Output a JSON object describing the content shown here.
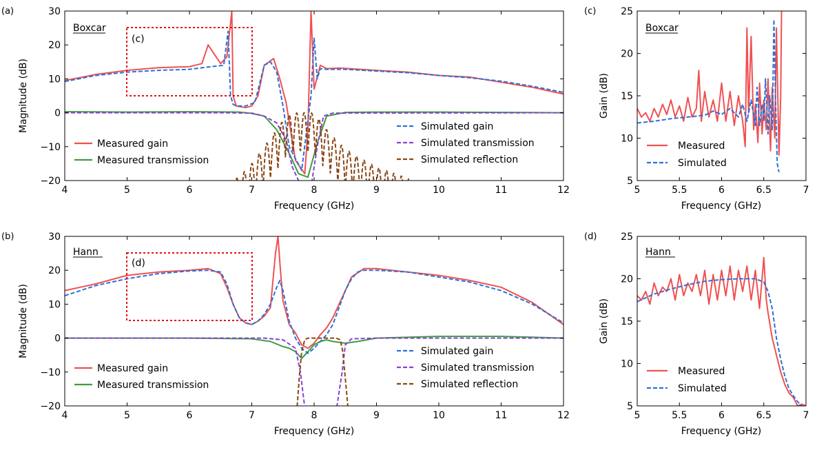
{
  "colors": {
    "measured_gain": "#f05050",
    "measured_transmission": "#3c9e3c",
    "simulated_gain": "#2a70d8",
    "simulated_transmission": "#8b3fd6",
    "simulated_reflection": "#8b4513",
    "dashed_box": "#e01010"
  },
  "panels": [
    {
      "id": "a",
      "panel_label": "(a)",
      "window_label": "Boxcar",
      "xlabel": "Frequency (GHz)",
      "ylabel": "Magnitude (dB)",
      "xlim": [
        4,
        12
      ],
      "ylim": [
        -20,
        30
      ],
      "xticks": [
        4,
        5,
        6,
        7,
        8,
        9,
        10,
        11,
        12
      ],
      "yticks": [
        -20,
        -10,
        0,
        10,
        20,
        30
      ],
      "inset_box_label": "(c)",
      "inset_box_range": {
        "x": [
          5,
          7
        ],
        "y": [
          5,
          25
        ]
      },
      "legend_left": [
        "Measured gain",
        "Measured transmission"
      ],
      "legend_right": [
        "Simulated gain",
        "Simulated transmission",
        "Simulated reflection"
      ]
    },
    {
      "id": "b",
      "panel_label": "(b)",
      "window_label": "Hann",
      "xlabel": "Frequency (GHz)",
      "ylabel": "Magnitude (dB)",
      "xlim": [
        4,
        12
      ],
      "ylim": [
        -20,
        30
      ],
      "xticks": [
        4,
        5,
        6,
        7,
        8,
        9,
        10,
        11,
        12
      ],
      "yticks": [
        -20,
        -10,
        0,
        10,
        20,
        30
      ],
      "inset_box_label": "(d)",
      "inset_box_range": {
        "x": [
          5,
          7
        ],
        "y": [
          5,
          25
        ]
      },
      "legend_left": [
        "Measured gain",
        "Measured transmission"
      ],
      "legend_right": [
        "Simulated gain",
        "Simulated transmission",
        "Simulated reflection"
      ]
    },
    {
      "id": "c",
      "panel_label": "(c)",
      "window_label": "Boxcar",
      "xlabel": "Frequency (GHz)",
      "ylabel": "Gain (dB)",
      "xlim": [
        5,
        7
      ],
      "ylim": [
        5,
        25
      ],
      "xticks": [
        5,
        5.5,
        6,
        6.5,
        7
      ],
      "yticks": [
        5,
        10,
        15,
        20,
        25
      ],
      "legend": [
        "Measured",
        "Simulated"
      ]
    },
    {
      "id": "d",
      "panel_label": "(d)",
      "window_label": "Hann",
      "xlabel": "Frequency (GHz)",
      "ylabel": "Gain (dB)",
      "xlim": [
        5,
        7
      ],
      "ylim": [
        5,
        25
      ],
      "xticks": [
        5,
        5.5,
        6,
        6.5,
        7
      ],
      "yticks": [
        5,
        10,
        15,
        20,
        25
      ],
      "legend": [
        "Measured",
        "Simulated"
      ]
    }
  ],
  "chart_data": [
    {
      "panel": "a",
      "type": "line",
      "title": "Boxcar",
      "xlabel": "Frequency (GHz)",
      "ylabel": "Magnitude (dB)",
      "xlim": [
        4,
        12
      ],
      "ylim": [
        -20,
        30
      ],
      "series": [
        {
          "name": "Measured gain",
          "color_key": "measured_gain",
          "dash": false,
          "x": [
            4.0,
            4.5,
            5.0,
            5.5,
            6.0,
            6.2,
            6.3,
            6.5,
            6.6,
            6.68,
            6.7,
            6.75,
            6.9,
            7.0,
            7.1,
            7.2,
            7.35,
            7.45,
            7.55,
            7.7,
            7.85,
            7.9,
            7.95,
            8.0,
            8.1,
            8.2,
            8.4,
            9.0,
            9.5,
            10.0,
            10.5,
            11.0,
            11.5,
            12.0
          ],
          "y": [
            9.5,
            11.3,
            12.5,
            13.3,
            13.6,
            14.5,
            20.0,
            14.5,
            16.5,
            30.0,
            5.0,
            2.0,
            1.5,
            2.0,
            5.0,
            14.0,
            16.0,
            10.0,
            3.0,
            -14.0,
            -18.0,
            -5.0,
            30.0,
            7.0,
            14.0,
            13.0,
            13.2,
            12.5,
            12.0,
            11.0,
            10.5,
            9.0,
            7.5,
            5.5
          ]
        },
        {
          "name": "Measured transmission",
          "color_key": "measured_transmission",
          "dash": false,
          "x": [
            4.0,
            5.0,
            6.0,
            6.8,
            7.0,
            7.2,
            7.4,
            7.6,
            7.75,
            7.9,
            8.05,
            8.2,
            8.5,
            9.0,
            10.0,
            11.0,
            12.0
          ],
          "y": [
            0.3,
            0.2,
            0.3,
            0.2,
            -0.2,
            -1.0,
            -5.0,
            -12.0,
            -18.0,
            -19.0,
            -9.0,
            -1.0,
            0.1,
            0.2,
            0.2,
            0.1,
            0.0
          ]
        },
        {
          "name": "Simulated gain",
          "color_key": "simulated_gain",
          "dash": true,
          "x": [
            4.0,
            4.5,
            5.0,
            5.5,
            6.0,
            6.3,
            6.55,
            6.62,
            6.66,
            6.7,
            6.75,
            6.9,
            7.05,
            7.2,
            7.3,
            7.4,
            7.5,
            7.6,
            7.8,
            7.95,
            8.0,
            8.05,
            8.1,
            8.2,
            8.5,
            9.0,
            9.5,
            10.0,
            10.5,
            11.0,
            11.5,
            12.0
          ],
          "y": [
            9.2,
            11.0,
            12.0,
            12.5,
            12.8,
            13.5,
            14.0,
            24.0,
            5.0,
            2.5,
            2.0,
            2.0,
            3.0,
            14.0,
            15.0,
            12.0,
            2.0,
            -10.0,
            -17.0,
            5.0,
            22.0,
            10.0,
            13.0,
            12.8,
            12.8,
            12.3,
            11.8,
            11.0,
            10.3,
            9.3,
            7.8,
            6.0
          ]
        },
        {
          "name": "Simulated transmission",
          "color_key": "simulated_transmission",
          "dash": true,
          "x": [
            4.0,
            6.5,
            7.0,
            7.2,
            7.4,
            7.55,
            7.65,
            7.8,
            7.95,
            8.05,
            8.15,
            8.3,
            12.0
          ],
          "y": [
            0.0,
            0.0,
            -0.1,
            -1.0,
            -3.0,
            -8.0,
            -16.0,
            -22.0,
            -22.0,
            -10.0,
            -1.0,
            -0.1,
            0.0
          ]
        },
        {
          "name": "Simulated reflection",
          "color_key": "simulated_reflection",
          "dash": true,
          "x": [
            6.4,
            6.8,
            7.0,
            7.2,
            7.4,
            7.55,
            7.65,
            7.75,
            7.85,
            7.95,
            8.05,
            8.15,
            8.25,
            8.4,
            8.6,
            8.8,
            9.0,
            9.3,
            9.6,
            9.8
          ],
          "y": [
            -22.0,
            -19.0,
            -15.0,
            -10.0,
            -5.0,
            -1.0,
            -0.2,
            0.0,
            0.0,
            0.0,
            -1.0,
            -4.0,
            -6.0,
            -9.0,
            -12.0,
            -14.0,
            -16.0,
            -18.0,
            -20.0,
            -22.0
          ],
          "ripple": 2.0
        }
      ]
    },
    {
      "panel": "b",
      "type": "line",
      "title": "Hann",
      "xlabel": "Frequency (GHz)",
      "ylabel": "Magnitude (dB)",
      "xlim": [
        4,
        12
      ],
      "ylim": [
        -20,
        30
      ],
      "series": [
        {
          "name": "Measured gain",
          "color_key": "measured_gain",
          "dash": false,
          "x": [
            4.0,
            4.5,
            5.0,
            5.5,
            6.0,
            6.3,
            6.5,
            6.6,
            6.7,
            6.8,
            6.9,
            7.0,
            7.1,
            7.2,
            7.3,
            7.38,
            7.42,
            7.46,
            7.5,
            7.6,
            7.7,
            7.8,
            7.9,
            8.0,
            8.1,
            8.2,
            8.3,
            8.4,
            8.5,
            8.6,
            8.8,
            9.0,
            9.5,
            10.0,
            10.5,
            11.0,
            11.5,
            12.0
          ],
          "y": [
            14.0,
            16.0,
            18.5,
            19.5,
            20.0,
            20.5,
            19.0,
            15.0,
            10.0,
            6.0,
            4.5,
            4.0,
            5.0,
            6.5,
            9.0,
            25.0,
            30.0,
            20.0,
            11.0,
            4.0,
            1.5,
            -2.0,
            -3.0,
            -1.5,
            1.0,
            3.0,
            6.0,
            10.0,
            14.0,
            18.0,
            20.5,
            20.5,
            19.5,
            18.5,
            17.0,
            15.0,
            10.5,
            4.0
          ]
        },
        {
          "name": "Measured transmission",
          "color_key": "measured_transmission",
          "dash": false,
          "x": [
            4.0,
            5.0,
            6.0,
            7.0,
            7.3,
            7.5,
            7.6,
            7.7,
            7.8,
            7.9,
            8.0,
            8.1,
            8.2,
            8.3,
            8.5,
            8.7,
            9.0,
            10.0,
            11.0,
            12.0
          ],
          "y": [
            0.0,
            0.0,
            0.0,
            -0.2,
            -1.0,
            -2.5,
            -3.0,
            -4.0,
            -6.0,
            -4.0,
            -2.0,
            -1.0,
            -0.5,
            -1.0,
            -1.5,
            -1.0,
            0.0,
            0.5,
            0.5,
            0.0
          ]
        },
        {
          "name": "Simulated gain",
          "color_key": "simulated_gain",
          "dash": true,
          "x": [
            4.0,
            4.5,
            5.0,
            5.5,
            6.0,
            6.3,
            6.5,
            6.6,
            6.7,
            6.8,
            6.9,
            7.0,
            7.1,
            7.2,
            7.3,
            7.4,
            7.45,
            7.5,
            7.6,
            7.7,
            7.8,
            7.9,
            8.0,
            8.1,
            8.2,
            8.3,
            8.4,
            8.5,
            8.6,
            8.7,
            8.8,
            9.0,
            9.5,
            10.0,
            10.5,
            11.0,
            11.5,
            12.0
          ],
          "y": [
            12.5,
            15.5,
            17.5,
            19.0,
            19.8,
            20.0,
            19.5,
            16.0,
            10.0,
            6.0,
            4.5,
            4.0,
            5.0,
            7.0,
            10.0,
            15.0,
            17.0,
            14.0,
            5.0,
            0.0,
            -3.0,
            -4.5,
            -3.0,
            -1.0,
            1.0,
            4.0,
            9.0,
            14.0,
            17.5,
            19.5,
            20.0,
            20.0,
            19.5,
            18.0,
            16.5,
            14.0,
            10.0,
            4.5
          ]
        },
        {
          "name": "Simulated transmission",
          "color_key": "simulated_transmission",
          "dash": true,
          "x": [
            4.0,
            7.2,
            7.5,
            7.7,
            7.78,
            7.86,
            7.95,
            8.35,
            8.45,
            8.5,
            8.6,
            9.0,
            12.0
          ],
          "y": [
            0.0,
            0.0,
            -0.5,
            -3.0,
            -10.0,
            -22.0,
            -22.0,
            -22.0,
            -10.0,
            -2.0,
            -0.2,
            0.0,
            0.0
          ]
        },
        {
          "name": "Simulated reflection",
          "color_key": "simulated_reflection",
          "dash": true,
          "x": [
            7.72,
            7.76,
            7.8,
            7.85,
            7.9,
            8.0,
            8.2,
            8.35,
            8.42,
            8.46,
            8.5,
            8.55
          ],
          "y": [
            -22.0,
            -12.0,
            -4.0,
            -0.5,
            0.0,
            0.0,
            0.0,
            0.0,
            -0.5,
            -4.0,
            -12.0,
            -22.0
          ]
        }
      ]
    },
    {
      "panel": "c",
      "type": "line",
      "title": "Boxcar",
      "xlabel": "Frequency (GHz)",
      "ylabel": "Gain (dB)",
      "xlim": [
        5,
        7
      ],
      "ylim": [
        5,
        25
      ],
      "series": [
        {
          "name": "Measured",
          "color_key": "measured_gain",
          "dash": false,
          "x": [
            5.0,
            5.05,
            5.1,
            5.15,
            5.2,
            5.25,
            5.3,
            5.35,
            5.4,
            5.45,
            5.5,
            5.55,
            5.6,
            5.65,
            5.7,
            5.73,
            5.76,
            5.8,
            5.85,
            5.9,
            5.95,
            6.0,
            6.05,
            6.1,
            6.15,
            6.2,
            6.25,
            6.28,
            6.3,
            6.32,
            6.35,
            6.38,
            6.4,
            6.43,
            6.45,
            6.48,
            6.5,
            6.53,
            6.55,
            6.58,
            6.6,
            6.63,
            6.65,
            6.68,
            6.7,
            6.71
          ],
          "y": [
            13.5,
            12.5,
            13.0,
            12.0,
            13.5,
            12.5,
            14.0,
            12.8,
            14.5,
            12.5,
            13.8,
            12.0,
            14.8,
            12.5,
            13.5,
            18.0,
            12.0,
            15.5,
            12.5,
            14.5,
            12.0,
            16.5,
            12.0,
            15.5,
            11.5,
            15.0,
            12.0,
            9.0,
            23.0,
            13.0,
            22.0,
            11.0,
            14.0,
            9.5,
            16.5,
            10.5,
            14.5,
            11.0,
            17.0,
            8.5,
            16.0,
            10.0,
            23.0,
            8.0,
            15.0,
            25.0
          ]
        },
        {
          "name": "Simulated",
          "color_key": "simulated_gain",
          "dash": true,
          "x": [
            5.0,
            5.2,
            5.4,
            5.6,
            5.8,
            5.9,
            6.0,
            6.1,
            6.2,
            6.25,
            6.3,
            6.35,
            6.4,
            6.42,
            6.45,
            6.48,
            6.5,
            6.52,
            6.55,
            6.57,
            6.6,
            6.62,
            6.64,
            6.66,
            6.68
          ],
          "y": [
            11.8,
            12.0,
            12.3,
            12.5,
            12.7,
            13.2,
            12.8,
            13.5,
            12.5,
            14.0,
            12.0,
            14.5,
            11.5,
            16.0,
            11.5,
            14.0,
            12.0,
            17.0,
            10.5,
            15.0,
            11.0,
            24.0,
            14.0,
            7.0,
            6.0
          ]
        }
      ]
    },
    {
      "panel": "d",
      "type": "line",
      "title": "Hann",
      "xlabel": "Frequency (GHz)",
      "ylabel": "Gain (dB)",
      "xlim": [
        5,
        7
      ],
      "ylim": [
        5,
        25
      ],
      "series": [
        {
          "name": "Measured",
          "color_key": "measured_gain",
          "dash": false,
          "x": [
            5.0,
            5.05,
            5.1,
            5.15,
            5.2,
            5.25,
            5.3,
            5.35,
            5.4,
            5.45,
            5.5,
            5.55,
            5.6,
            5.65,
            5.7,
            5.75,
            5.8,
            5.85,
            5.9,
            5.95,
            6.0,
            6.05,
            6.1,
            6.15,
            6.2,
            6.25,
            6.3,
            6.35,
            6.4,
            6.45,
            6.5,
            6.53,
            6.55,
            6.6,
            6.65,
            6.7,
            6.75,
            6.8,
            6.85,
            6.9,
            6.95,
            7.0
          ],
          "y": [
            18.0,
            17.5,
            18.5,
            17.0,
            19.5,
            18.0,
            19.0,
            18.5,
            20.0,
            17.5,
            20.5,
            18.0,
            19.5,
            18.5,
            20.5,
            18.0,
            21.0,
            17.0,
            20.5,
            17.5,
            21.0,
            18.0,
            21.5,
            17.5,
            21.0,
            18.5,
            21.5,
            17.5,
            21.0,
            16.5,
            22.5,
            17.5,
            16.0,
            13.0,
            11.0,
            9.0,
            7.5,
            6.5,
            6.0,
            5.0,
            5.2,
            5.0
          ]
        },
        {
          "name": "Simulated",
          "color_key": "simulated_gain",
          "dash": true,
          "x": [
            5.0,
            5.2,
            5.4,
            5.6,
            5.8,
            6.0,
            6.2,
            6.3,
            6.4,
            6.5,
            6.55,
            6.6,
            6.65,
            6.7,
            6.75,
            6.8,
            6.85,
            6.9,
            6.95
          ],
          "y": [
            17.3,
            18.2,
            18.8,
            19.3,
            19.7,
            19.9,
            20.0,
            20.0,
            20.0,
            19.6,
            18.5,
            16.5,
            13.0,
            10.5,
            8.5,
            7.0,
            6.2,
            5.5,
            5.0
          ]
        }
      ]
    }
  ]
}
